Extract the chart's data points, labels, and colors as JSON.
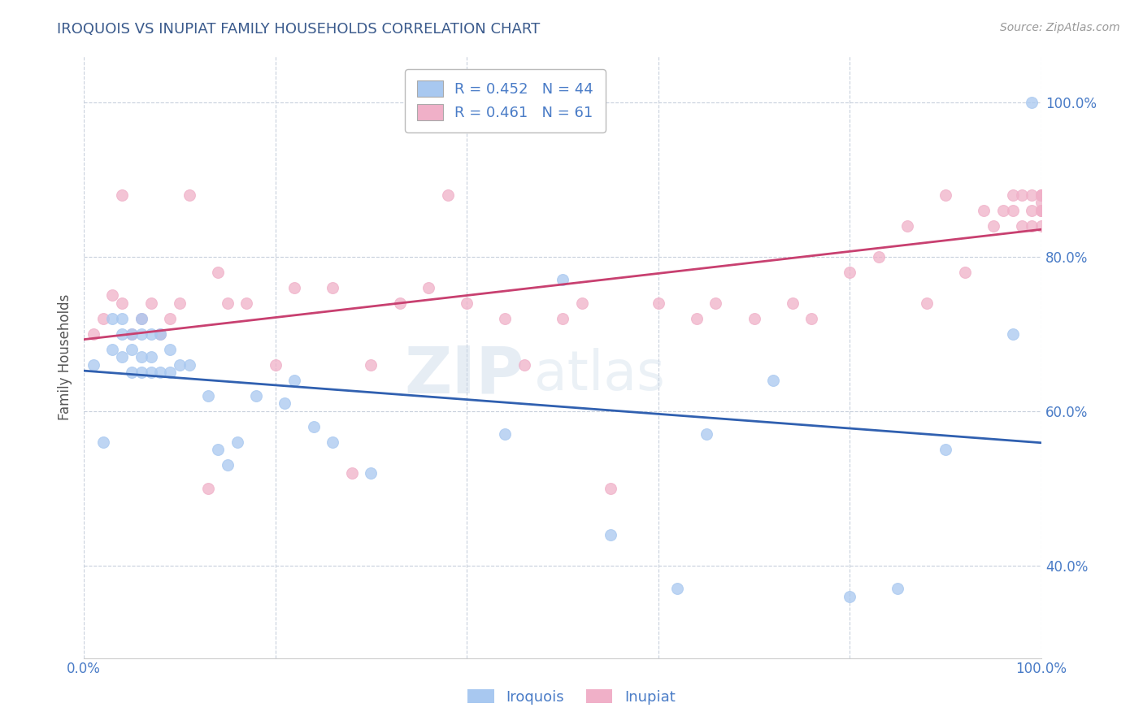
{
  "title": "IROQUOIS VS INUPIAT FAMILY HOUSEHOLDS CORRELATION CHART",
  "source_text": "Source: ZipAtlas.com",
  "ylabel": "Family Households",
  "xlim": [
    0.0,
    1.0
  ],
  "ylim": [
    0.28,
    1.06
  ],
  "xticks": [
    0.0,
    0.2,
    0.4,
    0.6,
    0.8,
    1.0
  ],
  "xticklabels": [
    "0.0%",
    "",
    "",
    "",
    "",
    "100.0%"
  ],
  "yticks": [
    0.4,
    0.6,
    0.8,
    1.0
  ],
  "yticklabels": [
    "40.0%",
    "60.0%",
    "80.0%",
    "100.0%"
  ],
  "title_color": "#3a5a8c",
  "axis_label_color": "#555555",
  "axis_tick_color": "#4a7cc7",
  "grid_color": "#c8d0dc",
  "source_color": "#999999",
  "blue_color": "#a8c8f0",
  "pink_color": "#f0b0c8",
  "blue_line_color": "#3060b0",
  "pink_line_color": "#c84070",
  "legend_r_blue": "0.452",
  "legend_n_blue": "44",
  "legend_r_pink": "0.461",
  "legend_n_pink": "61",
  "iroquois_x": [
    0.01,
    0.02,
    0.03,
    0.03,
    0.04,
    0.04,
    0.04,
    0.05,
    0.05,
    0.05,
    0.06,
    0.06,
    0.06,
    0.06,
    0.07,
    0.07,
    0.07,
    0.08,
    0.08,
    0.09,
    0.09,
    0.1,
    0.11,
    0.13,
    0.14,
    0.15,
    0.16,
    0.18,
    0.21,
    0.22,
    0.24,
    0.26,
    0.3,
    0.44,
    0.5,
    0.55,
    0.62,
    0.65,
    0.72,
    0.8,
    0.85,
    0.9,
    0.97,
    0.99
  ],
  "iroquois_y": [
    0.66,
    0.56,
    0.68,
    0.72,
    0.67,
    0.7,
    0.72,
    0.65,
    0.68,
    0.7,
    0.65,
    0.67,
    0.7,
    0.72,
    0.65,
    0.67,
    0.7,
    0.65,
    0.7,
    0.65,
    0.68,
    0.66,
    0.66,
    0.62,
    0.55,
    0.53,
    0.56,
    0.62,
    0.61,
    0.64,
    0.58,
    0.56,
    0.52,
    0.57,
    0.77,
    0.44,
    0.37,
    0.57,
    0.64,
    0.36,
    0.37,
    0.55,
    0.7,
    1.0
  ],
  "inupiat_x": [
    0.01,
    0.02,
    0.03,
    0.04,
    0.04,
    0.05,
    0.06,
    0.07,
    0.08,
    0.09,
    0.1,
    0.11,
    0.13,
    0.14,
    0.15,
    0.17,
    0.2,
    0.22,
    0.26,
    0.28,
    0.3,
    0.33,
    0.36,
    0.38,
    0.4,
    0.44,
    0.46,
    0.5,
    0.52,
    0.55,
    0.6,
    0.64,
    0.66,
    0.7,
    0.74,
    0.76,
    0.8,
    0.83,
    0.86,
    0.88,
    0.9,
    0.92,
    0.94,
    0.95,
    0.96,
    0.97,
    0.97,
    0.98,
    0.98,
    0.99,
    0.99,
    0.99,
    1.0,
    1.0,
    1.0,
    1.0,
    1.0,
    1.0,
    1.0,
    1.0,
    1.0
  ],
  "inupiat_y": [
    0.7,
    0.72,
    0.75,
    0.74,
    0.88,
    0.7,
    0.72,
    0.74,
    0.7,
    0.72,
    0.74,
    0.88,
    0.5,
    0.78,
    0.74,
    0.74,
    0.66,
    0.76,
    0.76,
    0.52,
    0.66,
    0.74,
    0.76,
    0.88,
    0.74,
    0.72,
    0.66,
    0.72,
    0.74,
    0.5,
    0.74,
    0.72,
    0.74,
    0.72,
    0.74,
    0.72,
    0.78,
    0.8,
    0.84,
    0.74,
    0.88,
    0.78,
    0.86,
    0.84,
    0.86,
    0.86,
    0.88,
    0.84,
    0.88,
    0.84,
    0.86,
    0.88,
    0.86,
    0.88,
    0.86,
    0.84,
    0.87,
    0.88,
    0.86,
    0.86,
    0.88
  ]
}
